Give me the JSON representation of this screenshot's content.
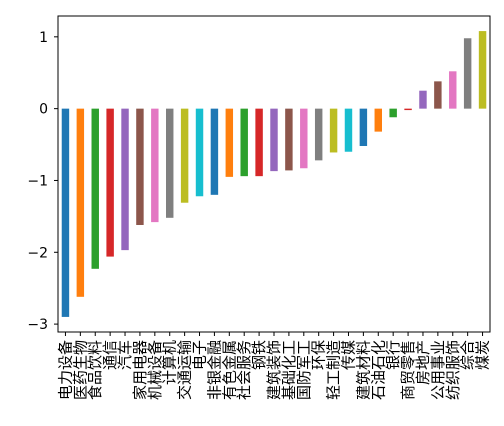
{
  "chart_data": {
    "type": "bar",
    "categories": [
      "电力设备",
      "医药生物",
      "食品饮料",
      "通信",
      "汽车",
      "家用电器",
      "机械设备",
      "计算机",
      "交通运输",
      "电子",
      "非银金融",
      "有色金属",
      "社会服务",
      "钢铁",
      "建筑装饰",
      "基础化工",
      "国防军工",
      "环保",
      "轻工制造",
      "传媒",
      "建筑材料",
      "石油石化",
      "银行",
      "商贸零售",
      "房地产",
      "公用事业",
      "纺织服饰",
      "综合",
      "煤炭"
    ],
    "values": [
      -2.9,
      -2.62,
      -2.23,
      -2.06,
      -1.97,
      -1.62,
      -1.58,
      -1.52,
      -1.31,
      -1.22,
      -1.2,
      -0.95,
      -0.94,
      -0.94,
      -0.87,
      -0.86,
      -0.83,
      -0.72,
      -0.61,
      -0.6,
      -0.52,
      -0.32,
      -0.12,
      -0.02,
      0.25,
      0.38,
      0.52,
      0.98,
      1.08
    ],
    "colors": [
      "#1f77b4",
      "#ff7f0e",
      "#2ca02c",
      "#d62728",
      "#9467bd",
      "#8c564b",
      "#e377c2",
      "#7f7f7f",
      "#bcbd22",
      "#17becf"
    ],
    "ylim": [
      -3.11,
      1.29
    ],
    "yticks": [
      {
        "value": -3,
        "label": "−3"
      },
      {
        "value": -2,
        "label": "−2"
      },
      {
        "value": -1,
        "label": "−1"
      },
      0,
      1
    ]
  }
}
